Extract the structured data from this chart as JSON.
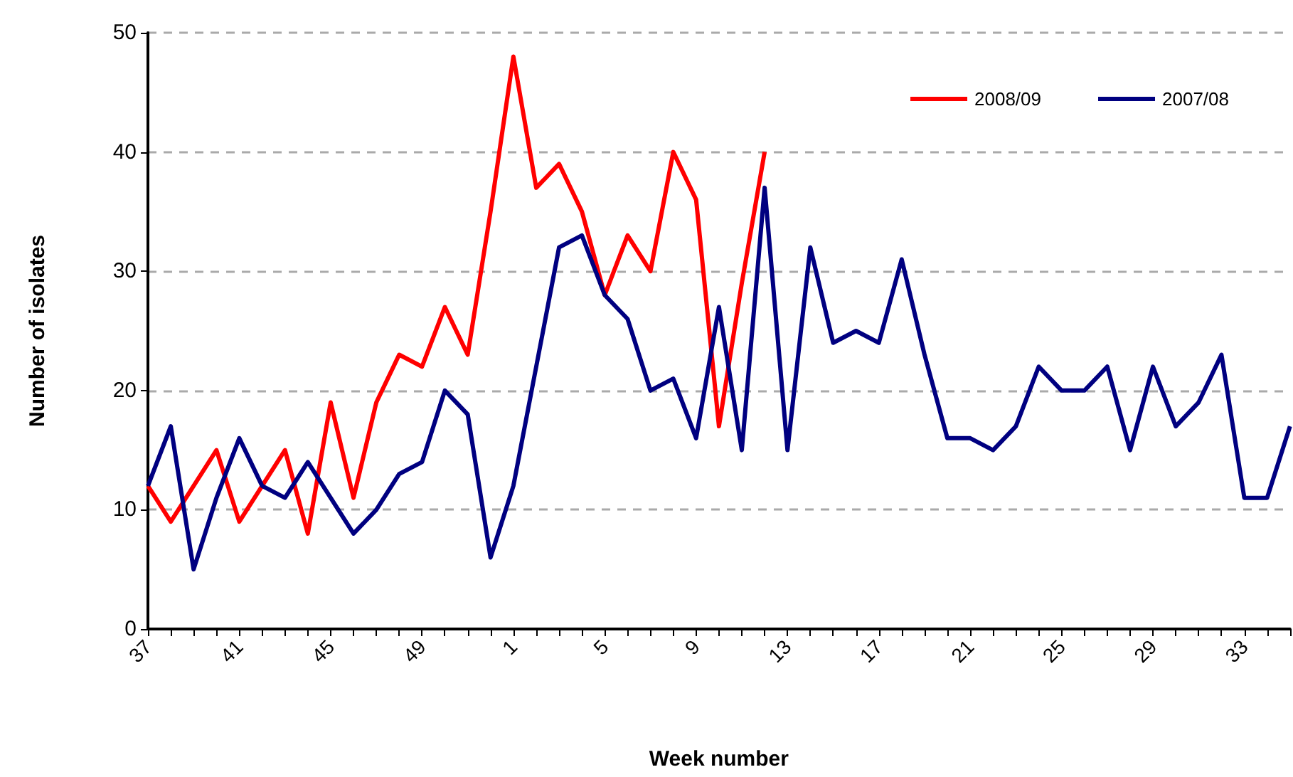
{
  "chart_data": {
    "type": "line",
    "xlabel": "Week number",
    "ylabel": "Number of isolates",
    "categories": [
      "37",
      null,
      null,
      null,
      "41",
      null,
      null,
      null,
      "45",
      null,
      null,
      null,
      "49",
      null,
      null,
      null,
      "1",
      null,
      null,
      null,
      "5",
      null,
      null,
      null,
      "9",
      null,
      null,
      null,
      "13",
      null,
      null,
      null,
      "17",
      null,
      null,
      null,
      "21",
      null,
      null,
      null,
      "25",
      null,
      null,
      null,
      "29",
      null,
      null,
      null,
      "33",
      null,
      null
    ],
    "series": [
      {
        "name": "2008/09",
        "color": "#ff0000",
        "values": [
          12,
          9,
          12,
          15,
          9,
          12,
          15,
          8,
          19,
          11,
          19,
          23,
          22,
          27,
          23,
          35,
          48,
          37,
          39,
          35,
          28,
          33,
          30,
          40,
          36,
          17,
          29,
          40,
          null,
          null,
          null,
          null,
          null,
          null,
          null,
          null,
          null,
          null,
          null,
          null,
          null,
          null,
          null,
          null,
          null,
          null,
          null,
          null,
          null,
          null,
          null
        ]
      },
      {
        "name": "2007/08",
        "color": "#000080",
        "values": [
          12,
          17,
          5,
          11,
          16,
          12,
          11,
          14,
          11,
          8,
          10,
          13,
          14,
          20,
          18,
          6,
          12,
          22,
          32,
          33,
          28,
          26,
          20,
          21,
          16,
          27,
          15,
          37,
          15,
          32,
          24,
          25,
          24,
          31,
          23,
          16,
          16,
          15,
          17,
          22,
          20,
          20,
          22,
          15,
          22,
          17,
          19,
          23,
          11,
          11,
          17
        ]
      }
    ],
    "ylim": [
      0,
      50
    ],
    "yticks": [
      0,
      10,
      20,
      30,
      40,
      50
    ],
    "grid": "y",
    "legend": "top right",
    "marker": "none",
    "line_style": "solid"
  }
}
